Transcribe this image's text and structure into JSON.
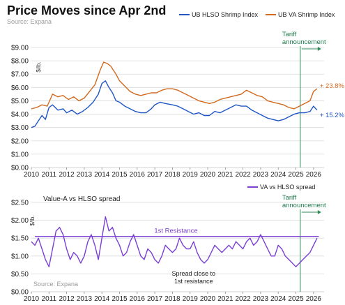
{
  "header": {
    "title": "Price Moves since Apr 2nd",
    "source": "Source: Expana"
  },
  "colors": {
    "hlso": "#1f56c7",
    "va": "#d2691e",
    "spread": "#7b3fd4",
    "tariff": "#2e8b57",
    "grid": "#d9d9d9"
  },
  "chart_data": [
    {
      "type": "line",
      "unit_label": "$/lb.",
      "x_ticks": [
        "2010",
        "2011",
        "2012",
        "2013",
        "2014",
        "2015",
        "2016",
        "2017",
        "2018",
        "2019",
        "2020",
        "2021",
        "2022",
        "2023",
        "2024",
        "2025",
        "2026"
      ],
      "xlim": [
        2010,
        2026.6
      ],
      "y_ticks": [
        "$0.00",
        "$1.00",
        "$2.00",
        "$3.00",
        "$4.00",
        "$5.00",
        "$6.00",
        "$7.00",
        "$8.00",
        "$9.00"
      ],
      "ylim": [
        0,
        9
      ],
      "legend_position": "top-right",
      "series": [
        {
          "name": "UB HLSO Shrimp Index",
          "color_key": "hlso",
          "x": [
            2010.0,
            2010.2,
            2010.4,
            2010.6,
            2010.8,
            2011.0,
            2011.2,
            2011.5,
            2011.8,
            2012.0,
            2012.3,
            2012.6,
            2012.9,
            2013.2,
            2013.5,
            2013.8,
            2014.0,
            2014.2,
            2014.4,
            2014.6,
            2014.8,
            2015.0,
            2015.3,
            2015.6,
            2015.9,
            2016.2,
            2016.5,
            2016.8,
            2017.0,
            2017.3,
            2017.6,
            2018.0,
            2018.3,
            2018.6,
            2018.9,
            2019.2,
            2019.5,
            2019.8,
            2020.1,
            2020.4,
            2020.7,
            2021.0,
            2021.3,
            2021.6,
            2021.9,
            2022.2,
            2022.5,
            2022.8,
            2023.1,
            2023.4,
            2023.7,
            2024.0,
            2024.3,
            2024.6,
            2024.9,
            2025.2,
            2025.5,
            2025.8,
            2026.0,
            2026.2
          ],
          "y": [
            3.0,
            3.1,
            3.5,
            3.9,
            3.6,
            4.5,
            4.7,
            4.3,
            4.4,
            4.1,
            4.3,
            4.0,
            4.2,
            4.5,
            4.9,
            5.5,
            6.3,
            6.5,
            6.0,
            5.6,
            5.0,
            4.9,
            4.6,
            4.4,
            4.2,
            4.1,
            4.1,
            4.4,
            4.7,
            4.9,
            4.8,
            4.7,
            4.6,
            4.4,
            4.2,
            4.0,
            4.1,
            3.9,
            3.9,
            4.2,
            4.1,
            4.3,
            4.5,
            4.7,
            4.6,
            4.6,
            4.3,
            4.1,
            3.9,
            3.7,
            3.6,
            3.5,
            3.6,
            3.8,
            4.0,
            4.1,
            4.1,
            4.2,
            4.6,
            4.3
          ]
        },
        {
          "name": "UB VA Shrimp Index",
          "color_key": "va",
          "x": [
            2010.0,
            2010.3,
            2010.6,
            2010.9,
            2011.2,
            2011.5,
            2011.8,
            2012.1,
            2012.4,
            2012.7,
            2013.0,
            2013.3,
            2013.6,
            2013.9,
            2014.1,
            2014.3,
            2014.5,
            2014.8,
            2015.0,
            2015.3,
            2015.6,
            2015.9,
            2016.2,
            2016.5,
            2016.8,
            2017.1,
            2017.4,
            2017.7,
            2018.0,
            2018.3,
            2018.6,
            2018.9,
            2019.2,
            2019.5,
            2019.8,
            2020.1,
            2020.4,
            2020.7,
            2021.0,
            2021.3,
            2021.6,
            2021.9,
            2022.2,
            2022.5,
            2022.8,
            2023.1,
            2023.4,
            2023.7,
            2024.0,
            2024.3,
            2024.6,
            2024.9,
            2025.2,
            2025.5,
            2025.8,
            2026.0,
            2026.2
          ],
          "y": [
            4.4,
            4.5,
            4.7,
            4.6,
            5.5,
            5.3,
            5.4,
            5.1,
            5.3,
            5.0,
            5.2,
            5.7,
            6.2,
            7.3,
            7.9,
            7.8,
            7.6,
            7.0,
            6.5,
            6.1,
            5.7,
            5.5,
            5.4,
            5.5,
            5.6,
            5.6,
            5.8,
            5.9,
            5.9,
            5.8,
            5.6,
            5.4,
            5.2,
            5.0,
            4.9,
            4.8,
            4.9,
            5.1,
            5.2,
            5.3,
            5.4,
            5.5,
            5.8,
            5.6,
            5.4,
            5.3,
            5.0,
            4.9,
            4.8,
            4.7,
            4.5,
            4.4,
            4.6,
            4.8,
            5.0,
            5.7,
            5.9
          ]
        }
      ],
      "annotations": {
        "tariff_x": 2025.25,
        "tariff_label": "Tariff announcement",
        "va_change": "+ 23.8%",
        "hlso_change": "+ 15.2%"
      }
    },
    {
      "type": "line",
      "title": "Value-A vs HLSO spread",
      "unit_label": "$/lb.",
      "x_ticks": [
        "2010",
        "2011",
        "2012",
        "2013",
        "2014",
        "2015",
        "2016",
        "2017",
        "2018",
        "2019",
        "2020",
        "2021",
        "2022",
        "2023",
        "2024",
        "2025",
        "2026"
      ],
      "xlim": [
        2010,
        2026.6
      ],
      "y_ticks": [
        "$0.00",
        "$0.50",
        "$1.00",
        "$1.50",
        "$2.00",
        "$2.50"
      ],
      "ylim": [
        0,
        2.5
      ],
      "legend_position": "top-right",
      "source": "Source: Expana",
      "series": [
        {
          "name": "VA vs HLSO spread",
          "color_key": "spread",
          "x": [
            2010.0,
            2010.2,
            2010.4,
            2010.6,
            2010.8,
            2011.0,
            2011.2,
            2011.4,
            2011.6,
            2011.8,
            2012.0,
            2012.2,
            2012.4,
            2012.6,
            2012.8,
            2013.0,
            2013.2,
            2013.4,
            2013.6,
            2013.8,
            2014.0,
            2014.2,
            2014.4,
            2014.6,
            2014.8,
            2015.0,
            2015.2,
            2015.4,
            2015.6,
            2015.8,
            2016.0,
            2016.2,
            2016.4,
            2016.6,
            2016.8,
            2017.0,
            2017.2,
            2017.4,
            2017.6,
            2017.8,
            2018.0,
            2018.2,
            2018.4,
            2018.6,
            2018.8,
            2019.0,
            2019.2,
            2019.4,
            2019.6,
            2019.8,
            2020.0,
            2020.2,
            2020.4,
            2020.6,
            2020.8,
            2021.0,
            2021.2,
            2021.4,
            2021.6,
            2021.8,
            2022.0,
            2022.2,
            2022.4,
            2022.6,
            2022.8,
            2023.0,
            2023.2,
            2023.4,
            2023.6,
            2023.8,
            2024.0,
            2024.2,
            2024.4,
            2024.6,
            2024.8,
            2025.0,
            2025.2,
            2025.4,
            2025.6,
            2025.8,
            2026.0,
            2026.2
          ],
          "y": [
            1.4,
            1.3,
            1.5,
            1.2,
            0.9,
            0.7,
            1.2,
            1.7,
            1.8,
            1.6,
            1.2,
            0.9,
            1.1,
            1.0,
            0.8,
            1.0,
            1.4,
            1.6,
            1.3,
            0.9,
            1.5,
            2.1,
            1.7,
            1.8,
            1.5,
            1.3,
            1.0,
            1.1,
            1.4,
            1.6,
            1.3,
            1.0,
            0.9,
            1.2,
            1.1,
            0.9,
            0.8,
            1.0,
            1.3,
            1.2,
            1.1,
            1.2,
            1.5,
            1.3,
            1.2,
            1.2,
            1.4,
            1.1,
            0.9,
            0.8,
            0.9,
            1.1,
            1.3,
            1.2,
            1.1,
            1.2,
            1.3,
            1.2,
            1.4,
            1.3,
            1.2,
            1.4,
            1.5,
            1.3,
            1.4,
            1.6,
            1.4,
            1.2,
            1.0,
            1.0,
            1.3,
            1.2,
            1.0,
            0.9,
            0.8,
            0.7,
            0.8,
            0.9,
            1.0,
            1.1,
            1.3,
            1.5
          ]
        }
      ],
      "annotations": {
        "resistance_value": 1.55,
        "resistance_label": "1st Resistance",
        "spread_note_line1": "Spread close to",
        "spread_note_line2": "1st resistance",
        "tariff_x": 2025.25,
        "tariff_label": "Tariff announcement"
      }
    }
  ]
}
